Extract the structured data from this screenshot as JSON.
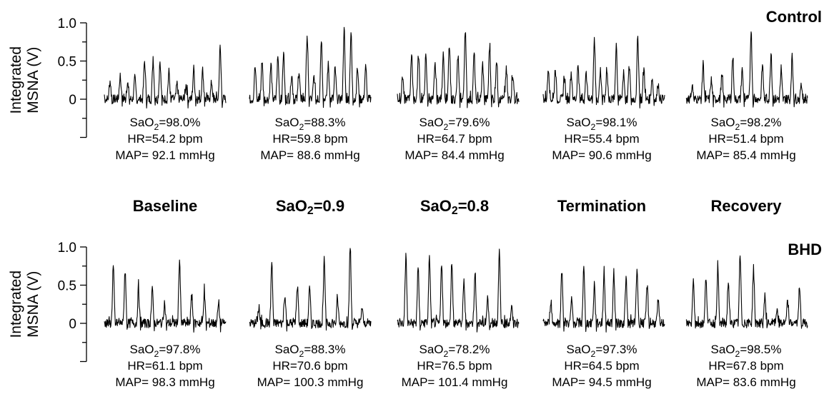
{
  "chart_data": {
    "type": "line",
    "ylabel_line1": "Integrated",
    "ylabel_line2": "MSNA (V)",
    "yticks": [
      "1.0",
      "0.5",
      "0"
    ],
    "ylim": [
      -0.5,
      1.0
    ],
    "phases": [
      "Baseline",
      "SaO",
      "SaO",
      "Termination",
      "Recovery"
    ],
    "phase_sub": [
      "",
      "2",
      "2",
      "",
      ""
    ],
    "phase_suffix": [
      "",
      "=0.9",
      "=0.8",
      "",
      ""
    ],
    "panels": [
      {
        "group": "Control",
        "traces": [
          {
            "peaks": [
              0.24,
              0.31,
              0.22,
              0.27,
              0.5,
              0.52,
              0.5,
              0.36,
              0.2,
              0.19,
              0.4,
              0.38,
              0.22,
              0.68
            ],
            "sao2": "98.0%",
            "hr": "54.2 bpm",
            "map": "92.1 mmHg"
          },
          {
            "peaks": [
              0.42,
              0.5,
              0.45,
              0.55,
              0.6,
              0.33,
              0.38,
              0.85,
              0.3,
              0.8,
              0.45,
              0.4,
              0.9,
              0.88,
              0.4,
              0.42
            ],
            "sao2": "88.3%",
            "hr": "59.8 bpm",
            "map": "88.6 mmHg"
          },
          {
            "peaks": [
              0.3,
              0.6,
              0.58,
              0.55,
              0.45,
              0.62,
              0.7,
              0.55,
              0.92,
              0.6,
              0.45,
              0.7,
              0.52,
              0.38,
              0.33
            ],
            "sao2": "79.6%",
            "hr": "64.7 bpm",
            "map": "84.4 mmHg"
          },
          {
            "peaks": [
              0.42,
              0.4,
              0.3,
              0.35,
              0.45,
              0.33,
              0.8,
              0.38,
              0.4,
              0.72,
              0.35,
              0.42,
              0.82,
              0.4,
              0.28,
              0.2
            ],
            "sao2": "98.1%",
            "hr": "55.4 bpm",
            "map": "90.6 mmHg"
          },
          {
            "peaks": [
              0.18,
              0.45,
              0.25,
              0.3,
              0.55,
              0.38,
              0.92,
              0.45,
              0.6,
              0.35,
              0.55,
              0.18
            ],
            "sao2": "98.2%",
            "hr": "51.4 bpm",
            "map": "85.4 mmHg"
          }
        ]
      },
      {
        "group": "BHD",
        "traces": [
          {
            "peaks": [
              0.75,
              0.7,
              0.45,
              0.43,
              0.27,
              0.83,
              0.35,
              0.4,
              0.25
            ],
            "sao2": "97.8%",
            "hr": "61.1 bpm",
            "map": "98.3 mmHg"
          },
          {
            "peaks": [
              0.2,
              0.8,
              0.38,
              0.5,
              0.45,
              0.82,
              0.3,
              1.02,
              0.2
            ],
            "sao2": "88.3%",
            "hr": "70.6 bpm",
            "map": "100.3 mmHg"
          },
          {
            "peaks": [
              0.88,
              0.72,
              0.85,
              0.8,
              0.82,
              0.55,
              0.68,
              0.3,
              0.92,
              0.2
            ],
            "sao2": "78.2%",
            "hr": "76.5 bpm",
            "map": "101.4 mmHg"
          },
          {
            "peaks": [
              0.3,
              0.7,
              0.3,
              0.72,
              0.5,
              0.65,
              0.65,
              0.58,
              0.72,
              0.5,
              0.28
            ],
            "sao2": "97.3%",
            "hr": "64.5 bpm",
            "map": "94.5 mmHg"
          },
          {
            "peaks": [
              0.58,
              0.62,
              0.72,
              0.55,
              0.88,
              0.72,
              0.35,
              0.2,
              0.28,
              0.45
            ],
            "sao2": "98.5%",
            "hr": "67.8 bpm",
            "map": "83.6 mmHg"
          }
        ]
      }
    ],
    "labels": {
      "sao2": "SaO",
      "sao2_sub": "2",
      "hr": "HR=",
      "map": "MAP= "
    }
  }
}
